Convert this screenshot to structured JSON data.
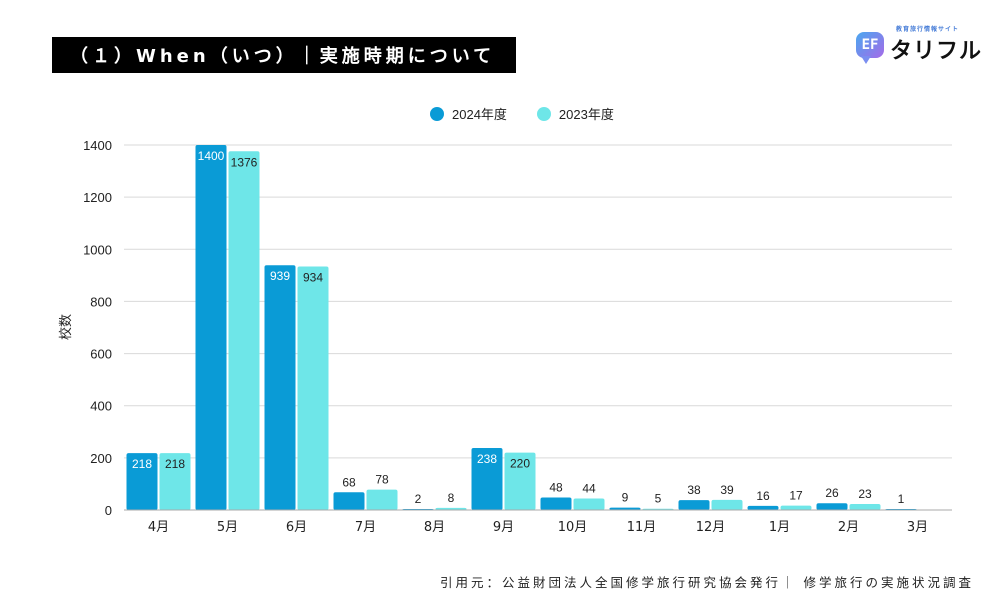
{
  "header": {
    "title": "（１）When（いつ）｜実施時期について"
  },
  "logo": {
    "tagline": "教育旅行情報サイト",
    "mark": "EF",
    "name": "タリフル"
  },
  "footer": {
    "citation": "引用元：公益財団法人全国修学旅行研究協会発行｜ 修学旅行の実施状況調査"
  },
  "colors": {
    "series_2024": "#0a9bd6",
    "series_2023": "#6ee6e8",
    "grid": "#d9d9d9",
    "axis": "#aaaaaa"
  },
  "chart_data": {
    "type": "bar",
    "title": "",
    "xlabel": "",
    "ylabel": "校数",
    "ylim": [
      0,
      1400
    ],
    "yticks": [
      0,
      200,
      400,
      600,
      800,
      1000,
      1200,
      1400
    ],
    "grid": true,
    "legend_position": "top-center",
    "categories": [
      "4月",
      "5月",
      "6月",
      "7月",
      "8月",
      "9月",
      "10月",
      "11月",
      "12月",
      "1月",
      "2月",
      "3月"
    ],
    "series": [
      {
        "name": "2024年度",
        "color": "#0a9bd6",
        "values": [
          218,
          1400,
          939,
          68,
          2,
          238,
          48,
          9,
          38,
          16,
          26,
          1
        ]
      },
      {
        "name": "2023年度",
        "color": "#6ee6e8",
        "values": [
          218,
          1376,
          934,
          78,
          8,
          220,
          44,
          5,
          39,
          17,
          23,
          null
        ]
      }
    ]
  }
}
